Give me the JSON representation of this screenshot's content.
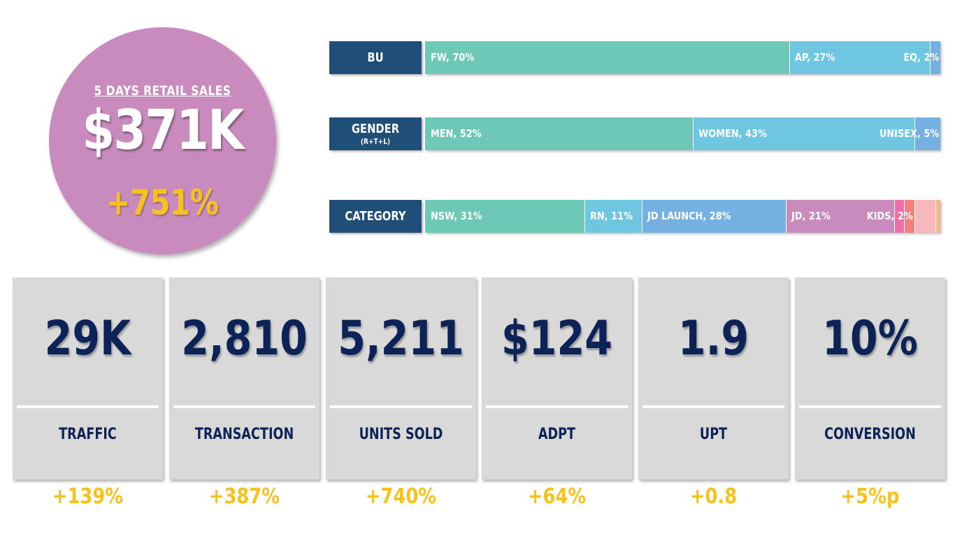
{
  "hero": {
    "title": "5 DAYS RETAIL SALES",
    "value": "$371K",
    "delta": "+751%",
    "circle_color": "#c98bbd",
    "value_color": "#ffffff",
    "delta_color": "#f7c21c"
  },
  "chart_data": [
    {
      "type": "bar",
      "orientation": "horizontal-stacked-100",
      "row_label": "BU",
      "row_sublabel": "",
      "segments": [
        {
          "name": "FW",
          "value": 70,
          "label": "FW, 70%",
          "color": "#6dc8b7"
        },
        {
          "name": "AP",
          "value": 27,
          "label": "AP, 27%",
          "color": "#6ec6e0"
        },
        {
          "name": "EQ",
          "value": 2,
          "label": "EQ, 2%",
          "color": "#74b1e2"
        }
      ]
    },
    {
      "type": "bar",
      "orientation": "horizontal-stacked-100",
      "row_label": "GENDER",
      "row_sublabel": "(R+T+L)",
      "segments": [
        {
          "name": "MEN",
          "value": 52,
          "label": "MEN, 52%",
          "color": "#6dc8b7"
        },
        {
          "name": "WOMEN",
          "value": 43,
          "label": "WOMEN, 43%",
          "color": "#6ec6e0"
        },
        {
          "name": "UNISEX",
          "value": 5,
          "label": "UNISEX, 5%",
          "color": "#74b1e2"
        }
      ]
    },
    {
      "type": "bar",
      "orientation": "horizontal-stacked-100",
      "row_label": "CATEGORY",
      "row_sublabel": "",
      "segments": [
        {
          "name": "NSW",
          "value": 31,
          "label": "NSW, 31%",
          "color": "#6dc8b7"
        },
        {
          "name": "RN",
          "value": 11,
          "label": "RN, 11%",
          "color": "#6ec6e0"
        },
        {
          "name": "JD LAUNCH",
          "value": 28,
          "label": "JD LAUNCH, 28%",
          "color": "#74b1e2"
        },
        {
          "name": "JD",
          "value": 21,
          "label": "JD, 21%",
          "color": "#c98bbd"
        },
        {
          "name": "",
          "value": 2,
          "label": "",
          "color": "#ee6fa5"
        },
        {
          "name": "KIDS",
          "value": 2,
          "label": "KIDS, 2%",
          "color": "#f2807c"
        },
        {
          "name": "",
          "value": 4,
          "label": "",
          "color": "#f7b8bd"
        },
        {
          "name": "",
          "value": 1,
          "label": "",
          "color": "#f5b785"
        }
      ]
    }
  ],
  "kpis": [
    {
      "value": "29K",
      "label": "TRAFFIC",
      "delta": "+139%"
    },
    {
      "value": "2,810",
      "label": "TRANSACTION",
      "delta": "+387%"
    },
    {
      "value": "5,211",
      "label": "UNITS SOLD",
      "delta": "+740%"
    },
    {
      "value": "$124",
      "label": "ADPT",
      "delta": "+64%"
    },
    {
      "value": "1.9",
      "label": "UPT",
      "delta": "+0.8"
    },
    {
      "value": "10%",
      "label": "CONVERSION",
      "delta": "+5%p"
    }
  ],
  "colors": {
    "label_box": "#1f4e79",
    "kpi_card": "#d9d9d9",
    "kpi_text": "#0d2257",
    "delta": "#f7c21c"
  }
}
